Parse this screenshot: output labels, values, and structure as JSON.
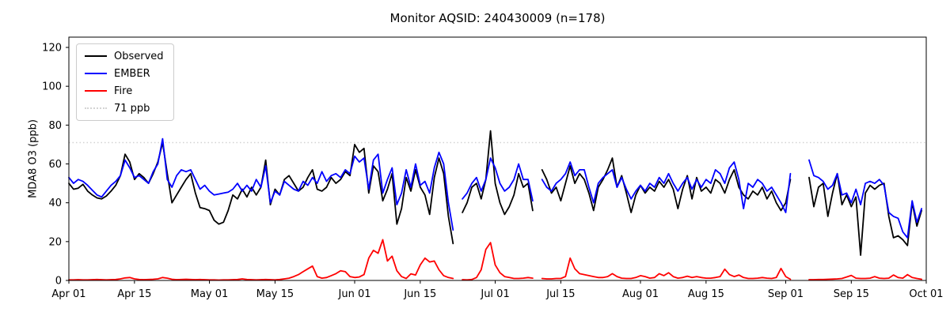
{
  "figure": {
    "title": "Monitor AQSID: 240430009 (n=178)",
    "ylabel": "MDA8 O3 (ppb)"
  },
  "chart_data": {
    "type": "line",
    "title": "Monitor AQSID: 240430009 (n=178)",
    "xlabel": "",
    "ylabel": "MDA8 O3 (ppb)",
    "grid": false,
    "legend_position": "upper left",
    "ylim": [
      0,
      125.3
    ],
    "yticks": [
      0,
      20,
      40,
      60,
      80,
      100,
      120
    ],
    "x_total_days": 183,
    "xticks": [
      {
        "day": 0,
        "label": "Apr 01"
      },
      {
        "day": 14,
        "label": "Apr 15"
      },
      {
        "day": 30,
        "label": "May 01"
      },
      {
        "day": 44,
        "label": "May 15"
      },
      {
        "day": 61,
        "label": "Jun 01"
      },
      {
        "day": 75,
        "label": "Jun 15"
      },
      {
        "day": 91,
        "label": "Jul 01"
      },
      {
        "day": 105,
        "label": "Jul 15"
      },
      {
        "day": 122,
        "label": "Aug 01"
      },
      {
        "day": 136,
        "label": "Aug 15"
      },
      {
        "day": 153,
        "label": "Sep 01"
      },
      {
        "day": 167,
        "label": "Sep 15"
      },
      {
        "day": 183,
        "label": "Oct 01"
      }
    ],
    "threshold": {
      "value": 71,
      "label": "71 ppb",
      "color": "#d3d3d3",
      "style": "dotted"
    },
    "legend": [
      {
        "label": "Observed",
        "color": "#000000",
        "style": "solid"
      },
      {
        "label": "EMBER",
        "color": "#0000ff",
        "style": "solid"
      },
      {
        "label": "Fire",
        "color": "#ff0000",
        "style": "solid"
      },
      {
        "label": "71 ppb",
        "color": "#d3d3d3",
        "style": "dotted"
      }
    ],
    "series": [
      {
        "name": "Observed",
        "color": "#000000",
        "values": [
          50,
          47,
          47.5,
          49.5,
          46,
          44,
          42.5,
          42,
          43.5,
          46,
          49,
          54,
          65,
          61,
          52,
          55,
          53,
          50,
          55,
          61,
          71,
          55,
          40,
          44,
          48,
          52,
          55,
          45,
          37.5,
          37,
          36,
          31,
          29,
          30,
          36,
          44,
          42,
          47,
          43,
          48,
          44,
          48,
          62,
          39,
          47,
          44,
          52,
          54,
          50,
          46,
          48,
          53,
          57,
          47,
          46,
          48,
          53,
          50,
          52,
          56,
          54,
          70,
          66,
          68,
          45,
          59,
          56,
          41,
          47,
          55,
          29,
          37,
          53,
          46,
          57,
          48,
          44,
          34,
          53,
          63,
          55,
          33,
          19,
          null,
          35,
          40,
          48,
          50,
          42,
          52,
          77,
          50,
          40,
          34,
          38,
          44,
          55,
          48,
          50,
          36,
          null,
          57,
          52,
          45,
          48,
          41,
          50,
          59,
          50,
          55,
          52,
          45,
          36,
          48,
          52,
          57,
          63,
          48,
          54,
          45,
          35,
          44,
          49,
          45,
          48,
          46,
          51,
          48,
          52,
          47,
          37,
          47,
          54,
          42,
          53,
          46,
          48,
          45,
          52,
          50,
          45,
          52,
          57,
          48,
          44,
          42,
          46,
          44,
          48,
          42,
          46,
          40,
          36,
          40,
          52,
          null,
          null,
          null,
          53,
          38,
          48,
          50,
          33,
          45,
          55,
          39,
          44,
          38,
          43,
          13,
          45,
          49,
          47,
          49,
          50,
          33,
          22,
          23,
          21,
          18,
          40,
          28,
          36
        ]
      },
      {
        "name": "EMBER",
        "color": "#0000ff",
        "values": [
          53,
          50,
          52,
          51,
          49,
          46.5,
          44,
          43,
          46,
          49,
          51,
          54,
          62,
          58,
          53,
          54,
          52,
          50,
          56,
          60,
          73,
          52,
          48,
          54,
          57,
          56,
          57,
          52,
          47,
          49,
          46,
          44,
          44.5,
          45,
          45.5,
          47,
          50,
          46,
          49,
          46,
          52,
          48,
          59,
          40,
          46,
          44,
          51,
          49,
          47,
          46,
          51,
          49,
          53,
          50,
          56,
          51,
          54,
          55,
          53,
          57,
          55,
          64,
          61,
          63,
          47,
          62,
          65,
          45,
          52,
          58,
          39,
          45,
          57,
          48,
          60,
          49,
          51,
          45,
          58,
          66,
          60,
          40,
          26,
          null,
          42,
          45,
          50,
          53,
          46,
          52,
          63,
          58,
          50,
          46,
          48,
          52,
          60,
          52,
          52,
          41,
          null,
          52,
          48,
          46,
          50,
          52,
          55,
          61,
          54,
          57,
          57,
          48,
          40,
          50,
          53,
          55,
          57,
          48,
          53,
          47,
          42,
          46,
          49,
          46,
          50,
          48,
          53,
          50,
          55,
          50,
          46,
          50,
          53,
          47,
          52,
          48,
          52,
          50,
          57,
          55,
          50,
          58,
          61,
          52,
          37,
          50,
          48,
          52,
          50,
          46,
          48,
          44,
          40,
          35,
          55,
          null,
          null,
          null,
          62,
          54,
          53,
          51,
          47,
          49,
          55,
          44,
          45,
          40,
          47,
          39,
          50,
          51,
          50,
          52,
          49,
          35,
          33,
          32,
          25,
          22,
          41,
          30,
          37
        ]
      },
      {
        "name": "Fire",
        "color": "#ff0000",
        "values": [
          0.3,
          0.3,
          0.4,
          0.3,
          0.3,
          0.4,
          0.5,
          0.4,
          0.3,
          0.4,
          0.5,
          0.8,
          1.3,
          1.5,
          0.8,
          0.5,
          0.4,
          0.5,
          0.6,
          0.8,
          1.5,
          1.2,
          0.6,
          0.4,
          0.5,
          0.6,
          0.5,
          0.4,
          0.5,
          0.4,
          0.3,
          0.3,
          0.2,
          0.3,
          0.3,
          0.4,
          0.5,
          0.8,
          0.5,
          0.4,
          0.3,
          0.4,
          0.5,
          0.4,
          0.3,
          0.5,
          0.8,
          1.2,
          2,
          3,
          4.5,
          6,
          7.4,
          2,
          1.2,
          1.5,
          2.5,
          3.5,
          5,
          4.5,
          2,
          1.5,
          1.8,
          3,
          11.5,
          15.5,
          14,
          21,
          10,
          12.5,
          5,
          2,
          1,
          3.4,
          2.8,
          8,
          11.5,
          9.5,
          10,
          5.5,
          2.5,
          1.5,
          1,
          null,
          0.4,
          0.3,
          0.5,
          1.5,
          5.5,
          16,
          19.5,
          8,
          4,
          2,
          1.5,
          1,
          1,
          1.2,
          1.5,
          1.2,
          null,
          1,
          0.8,
          0.8,
          1,
          1,
          2,
          11.5,
          6,
          3.5,
          3,
          2.5,
          2,
          1.5,
          1.5,
          2,
          3.5,
          2,
          1.2,
          1,
          1,
          1.5,
          2.5,
          2,
          1.2,
          1.5,
          3.5,
          2.5,
          4,
          2,
          1.2,
          1.5,
          2.2,
          1.5,
          2,
          1.5,
          1.2,
          1.2,
          1.5,
          2,
          5.8,
          3,
          2,
          2.8,
          1.5,
          1,
          1,
          1.2,
          1.5,
          1.2,
          1,
          1.5,
          6.2,
          2,
          0.6,
          null,
          null,
          null,
          0.4,
          0.4,
          0.5,
          0.5,
          0.6,
          0.7,
          0.8,
          1,
          1.8,
          2.6,
          1.2,
          1,
          1,
          1.2,
          2,
          1.2,
          1,
          1.2,
          2.8,
          1.5,
          1.2,
          3,
          1.5,
          1,
          0.6
        ]
      }
    ]
  }
}
